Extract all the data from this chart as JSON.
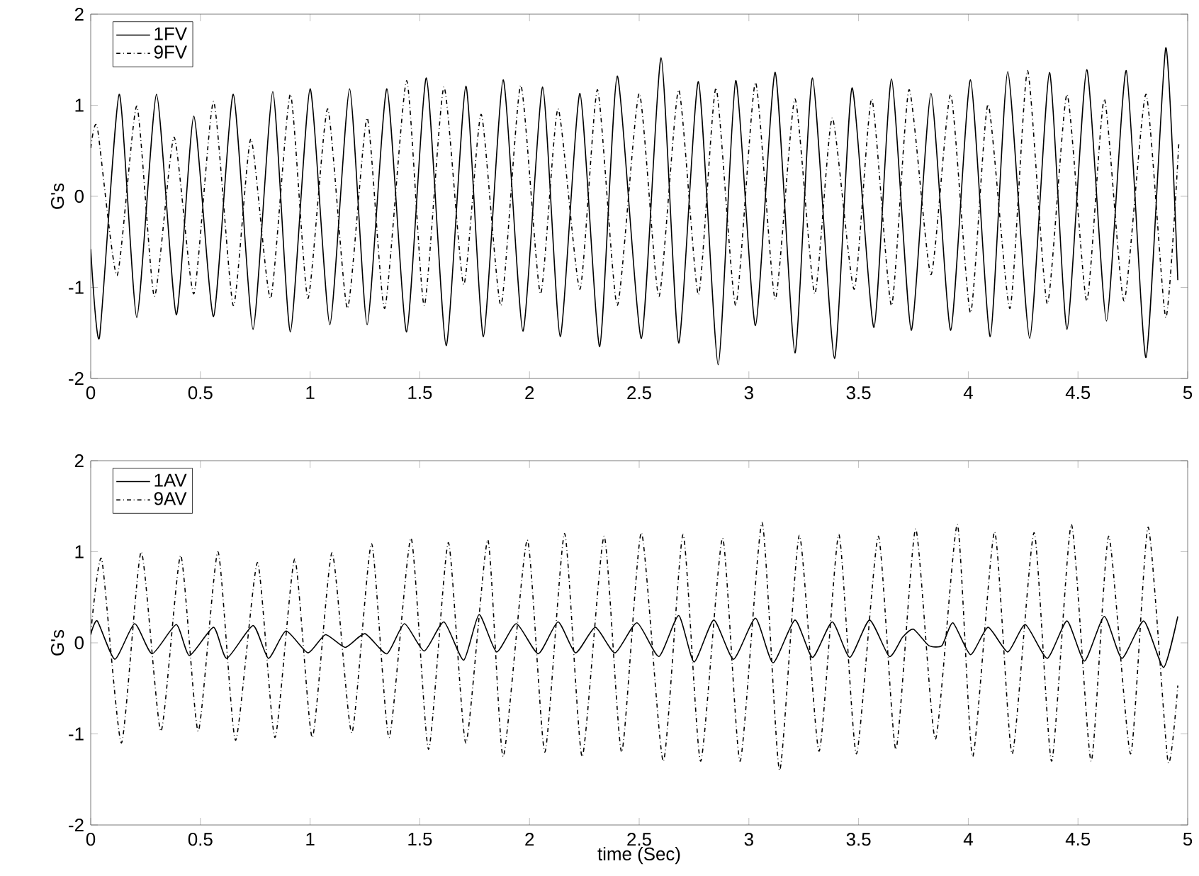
{
  "chart_data": [
    {
      "type": "line",
      "ylabel": "G's",
      "xlim": [
        0,
        5
      ],
      "ylim": [
        -2,
        2
      ],
      "xticks": [
        0,
        0.5,
        1,
        1.5,
        2,
        2.5,
        3,
        3.5,
        4,
        4.5,
        5
      ],
      "yticks": [
        -2,
        -1,
        0,
        1,
        2
      ],
      "legend": "top left",
      "grid": false,
      "series": [
        {
          "name": "1FV",
          "color": "#000000",
          "line_style": "solid",
          "x": [
            0,
            0.04,
            0.13,
            0.21,
            0.3,
            0.39,
            0.47,
            0.56,
            0.65,
            0.74,
            0.83,
            0.91,
            1.0,
            1.09,
            1.18,
            1.26,
            1.35,
            1.44,
            1.53,
            1.62,
            1.71,
            1.79,
            1.88,
            1.97,
            2.06,
            2.14,
            2.23,
            2.32,
            2.4,
            2.51,
            2.6,
            2.68,
            2.77,
            2.86,
            2.94,
            3.03,
            3.12,
            3.21,
            3.29,
            3.39,
            3.47,
            3.57,
            3.65,
            3.74,
            3.83,
            3.92,
            4.01,
            4.1,
            4.18,
            4.28,
            4.37,
            4.45,
            4.54,
            4.63,
            4.72,
            4.81,
            4.9,
            4.955
          ],
          "values": [
            -0.58,
            -1.55,
            1.12,
            -1.33,
            1.12,
            -1.3,
            0.88,
            -1.32,
            1.12,
            -1.46,
            1.15,
            -1.49,
            1.18,
            -1.41,
            1.18,
            -1.41,
            1.18,
            -1.49,
            1.3,
            -1.64,
            1.21,
            -1.54,
            1.28,
            -1.48,
            1.2,
            -1.54,
            1.13,
            -1.65,
            1.32,
            -1.56,
            1.52,
            -1.61,
            1.26,
            -1.85,
            1.27,
            -1.42,
            1.36,
            -1.72,
            1.3,
            -1.78,
            1.19,
            -1.44,
            1.29,
            -1.47,
            1.13,
            -1.47,
            1.28,
            -1.54,
            1.37,
            -1.56,
            1.36,
            -1.46,
            1.39,
            -1.37,
            1.38,
            -1.77,
            1.63,
            -0.92
          ]
        },
        {
          "name": "9FV",
          "color": "#000000",
          "line_style": "dashdot",
          "x": [
            0,
            0.03,
            0.12,
            0.21,
            0.29,
            0.38,
            0.47,
            0.56,
            0.65,
            0.73,
            0.82,
            0.91,
            0.99,
            1.08,
            1.17,
            1.26,
            1.34,
            1.44,
            1.52,
            1.61,
            1.7,
            1.78,
            1.87,
            1.96,
            2.05,
            2.13,
            2.23,
            2.31,
            2.4,
            2.5,
            2.59,
            2.68,
            2.77,
            2.85,
            2.94,
            3.03,
            3.12,
            3.21,
            3.3,
            3.38,
            3.48,
            3.56,
            3.65,
            3.73,
            3.83,
            3.92,
            4.01,
            4.09,
            4.19,
            4.27,
            4.36,
            4.45,
            4.54,
            4.62,
            4.71,
            4.81,
            4.9,
            4.96
          ],
          "values": [
            0.53,
            0.76,
            -0.87,
            0.99,
            -1.1,
            0.65,
            -1.07,
            1.04,
            -1.2,
            0.63,
            -1.12,
            1.12,
            -1.12,
            0.96,
            -1.23,
            0.86,
            -1.23,
            1.27,
            -1.2,
            1.2,
            -0.97,
            0.9,
            -1.2,
            1.22,
            -1.07,
            0.96,
            -1.02,
            1.17,
            -1.2,
            1.13,
            -1.1,
            1.17,
            -1.08,
            1.19,
            -1.2,
            1.25,
            -1.13,
            1.07,
            -1.07,
            0.86,
            -1.02,
            1.07,
            -1.2,
            1.17,
            -0.86,
            1.12,
            -1.28,
            1.01,
            -1.23,
            1.38,
            -1.18,
            1.12,
            -1.15,
            1.07,
            -1.15,
            1.12,
            -1.33,
            0.6
          ]
        }
      ]
    },
    {
      "type": "line",
      "xlabel": "time (Sec)",
      "ylabel": "G's",
      "xlim": [
        0,
        5
      ],
      "ylim": [
        -2,
        2
      ],
      "xticks": [
        0,
        0.5,
        1,
        1.5,
        2,
        2.5,
        3,
        3.5,
        4,
        4.5,
        5
      ],
      "yticks": [
        -2,
        -1,
        0,
        1,
        2
      ],
      "legend": "top left",
      "grid": false,
      "series": [
        {
          "name": "1AV",
          "color": "#000000",
          "line_style": "solid",
          "x": [
            0,
            0.03,
            0.11,
            0.2,
            0.28,
            0.39,
            0.45,
            0.56,
            0.62,
            0.74,
            0.81,
            0.89,
            0.99,
            1.07,
            1.16,
            1.25,
            1.35,
            1.43,
            1.52,
            1.61,
            1.7,
            1.77,
            1.85,
            1.94,
            2.04,
            2.13,
            2.21,
            2.3,
            2.39,
            2.49,
            2.59,
            2.68,
            2.75,
            2.84,
            2.93,
            3.03,
            3.11,
            3.21,
            3.29,
            3.38,
            3.46,
            3.55,
            3.64,
            3.7,
            3.75,
            3.82,
            3.88,
            3.93,
            4.01,
            4.09,
            4.18,
            4.26,
            4.36,
            4.45,
            4.53,
            4.62,
            4.7,
            4.8,
            4.89,
            4.955
          ],
          "values": [
            0.09,
            0.24,
            -0.18,
            0.21,
            -0.12,
            0.2,
            -0.14,
            0.17,
            -0.17,
            0.19,
            -0.17,
            0.13,
            -0.11,
            0.09,
            -0.05,
            0.1,
            -0.12,
            0.21,
            -0.09,
            0.23,
            -0.19,
            0.31,
            -0.1,
            0.21,
            -0.12,
            0.23,
            -0.11,
            0.17,
            -0.11,
            0.22,
            -0.15,
            0.3,
            -0.21,
            0.25,
            -0.18,
            0.27,
            -0.22,
            0.25,
            -0.16,
            0.23,
            -0.16,
            0.25,
            -0.15,
            0.06,
            0.15,
            -0.03,
            -0.03,
            0.22,
            -0.13,
            0.17,
            -0.1,
            0.2,
            -0.17,
            0.24,
            -0.2,
            0.29,
            -0.17,
            0.24,
            -0.27,
            0.29
          ]
        },
        {
          "name": "9AV",
          "color": "#000000",
          "line_style": "dashdot",
          "x": [
            0,
            0.05,
            0.14,
            0.23,
            0.32,
            0.41,
            0.49,
            0.58,
            0.66,
            0.76,
            0.84,
            0.93,
            1.01,
            1.1,
            1.19,
            1.28,
            1.36,
            1.46,
            1.54,
            1.63,
            1.71,
            1.81,
            1.88,
            1.99,
            2.07,
            2.16,
            2.24,
            2.34,
            2.42,
            2.51,
            2.61,
            2.7,
            2.78,
            2.88,
            2.96,
            3.06,
            3.14,
            3.23,
            3.32,
            3.41,
            3.49,
            3.59,
            3.67,
            3.76,
            3.85,
            3.95,
            4.02,
            4.12,
            4.2,
            4.3,
            4.38,
            4.47,
            4.56,
            4.64,
            4.74,
            4.82,
            4.91,
            4.955
          ],
          "values": [
            0.1,
            0.92,
            -1.1,
            1.0,
            -0.97,
            0.96,
            -0.97,
            1.0,
            -1.07,
            0.88,
            -1.04,
            0.92,
            -1.04,
            0.99,
            -0.99,
            1.09,
            -1.04,
            1.15,
            -1.17,
            1.1,
            -1.1,
            1.13,
            -1.25,
            1.13,
            -1.2,
            1.2,
            -1.25,
            1.17,
            -1.2,
            1.21,
            -1.3,
            1.19,
            -1.3,
            1.15,
            -1.3,
            1.32,
            -1.4,
            1.18,
            -1.19,
            1.19,
            -1.22,
            1.17,
            -1.17,
            1.25,
            -1.06,
            1.3,
            -1.25,
            1.22,
            -1.22,
            1.21,
            -1.3,
            1.3,
            -1.3,
            1.17,
            -1.22,
            1.27,
            -1.3,
            -0.47
          ]
        }
      ]
    }
  ]
}
